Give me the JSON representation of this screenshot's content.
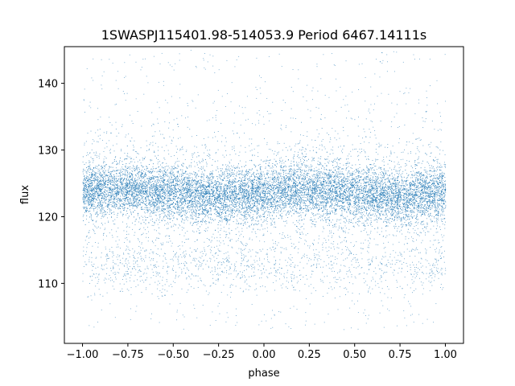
{
  "chart_data": {
    "type": "scatter",
    "title": "1SWASPJ115401.98-514053.9 Period 6467.14111s",
    "xlabel": "phase",
    "ylabel": "flux",
    "xlim": [
      -1.1,
      1.1
    ],
    "ylim": [
      101,
      145.5
    ],
    "xticks": [
      -1.0,
      -0.75,
      -0.5,
      -0.25,
      0.0,
      0.25,
      0.5,
      0.75,
      1.0
    ],
    "xtick_labels": [
      "−1.00",
      "−0.75",
      "−0.50",
      "−0.25",
      "0.00",
      "0.25",
      "0.50",
      "0.75",
      "1.00"
    ],
    "yticks": [
      110,
      120,
      130,
      140
    ],
    "ytick_labels": [
      "110",
      "120",
      "130",
      "140"
    ],
    "grid": false,
    "marker_color": "#1f77b4",
    "series": [
      {
        "description_points": [
          {
            "x": -1.0,
            "y": 123.8
          },
          {
            "x": -0.75,
            "y": 124.3
          },
          {
            "x": -0.5,
            "y": 123.6
          },
          {
            "x": -0.25,
            "y": 122.9
          },
          {
            "x": 0.0,
            "y": 123.6
          },
          {
            "x": 0.25,
            "y": 124.3
          },
          {
            "x": 0.5,
            "y": 123.6
          },
          {
            "x": 0.75,
            "y": 122.9
          },
          {
            "x": 1.0,
            "y": 123.8
          }
        ],
        "band_center_mean": 123.6,
        "band_half_width_dense": 3.5,
        "secondary_band_mean": 112.5,
        "outlier_range": [
          103,
          145
        ]
      }
    ]
  }
}
